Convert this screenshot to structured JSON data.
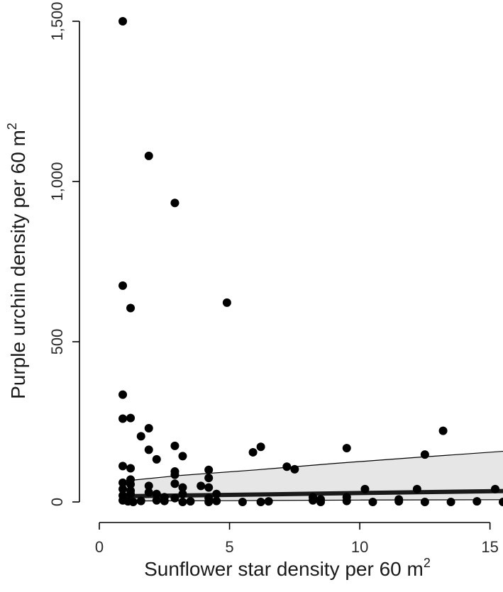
{
  "chart_data": {
    "type": "scatter",
    "title": "",
    "xlabel": "Sunflower star density per 60 m",
    "xlabel_sup": "2",
    "ylabel": "Purple urchin density per 60 m",
    "ylabel_sup": "2",
    "xlim": [
      0,
      15.5
    ],
    "ylim": [
      0,
      1500
    ],
    "x_ticks": [
      0,
      5,
      10,
      15
    ],
    "x_tick_labels": [
      "0",
      "5",
      "10",
      "15"
    ],
    "y_ticks": [
      0,
      500,
      1000,
      1500
    ],
    "y_tick_labels": [
      "0",
      "500",
      "1,000",
      "1,500"
    ],
    "grid": false,
    "legend": "none",
    "point_color": "#000000",
    "band_fill": "#e6e6e6",
    "points": [
      {
        "x": 0.9,
        "y": 1500
      },
      {
        "x": 1.9,
        "y": 1080
      },
      {
        "x": 2.9,
        "y": 933
      },
      {
        "x": 0.9,
        "y": 675
      },
      {
        "x": 1.2,
        "y": 605
      },
      {
        "x": 4.9,
        "y": 622
      },
      {
        "x": 0.9,
        "y": 335
      },
      {
        "x": 0.9,
        "y": 260
      },
      {
        "x": 1.2,
        "y": 262
      },
      {
        "x": 1.9,
        "y": 230
      },
      {
        "x": 1.6,
        "y": 205
      },
      {
        "x": 1.9,
        "y": 163
      },
      {
        "x": 2.9,
        "y": 175
      },
      {
        "x": 3.2,
        "y": 143
      },
      {
        "x": 2.2,
        "y": 133
      },
      {
        "x": 0.9,
        "y": 112
      },
      {
        "x": 1.2,
        "y": 105
      },
      {
        "x": 4.2,
        "y": 100
      },
      {
        "x": 2.9,
        "y": 95
      },
      {
        "x": 2.9,
        "y": 85
      },
      {
        "x": 0.9,
        "y": 60
      },
      {
        "x": 1.2,
        "y": 70
      },
      {
        "x": 1.2,
        "y": 55
      },
      {
        "x": 1.9,
        "y": 50
      },
      {
        "x": 2.9,
        "y": 57
      },
      {
        "x": 3.9,
        "y": 50
      },
      {
        "x": 4.2,
        "y": 45
      },
      {
        "x": 4.2,
        "y": 75
      },
      {
        "x": 3.2,
        "y": 45
      },
      {
        "x": 0.9,
        "y": 40
      },
      {
        "x": 1.2,
        "y": 35
      },
      {
        "x": 1.2,
        "y": 25
      },
      {
        "x": 1.9,
        "y": 30
      },
      {
        "x": 2.2,
        "y": 25
      },
      {
        "x": 2.5,
        "y": 15
      },
      {
        "x": 3.2,
        "y": 25
      },
      {
        "x": 4.5,
        "y": 25
      },
      {
        "x": 4.2,
        "y": 12
      },
      {
        "x": 0.9,
        "y": 20
      },
      {
        "x": 0.9,
        "y": 5
      },
      {
        "x": 1.1,
        "y": 2
      },
      {
        "x": 1.3,
        "y": 0
      },
      {
        "x": 1.6,
        "y": 3
      },
      {
        "x": 2.2,
        "y": 5
      },
      {
        "x": 2.5,
        "y": 3
      },
      {
        "x": 2.9,
        "y": 12
      },
      {
        "x": 3.2,
        "y": 0
      },
      {
        "x": 3.5,
        "y": 2
      },
      {
        "x": 4.2,
        "y": 0
      },
      {
        "x": 4.5,
        "y": 3
      },
      {
        "x": 5.5,
        "y": 0
      },
      {
        "x": 5.9,
        "y": 155
      },
      {
        "x": 6.2,
        "y": 172
      },
      {
        "x": 6.2,
        "y": 0
      },
      {
        "x": 6.5,
        "y": 2
      },
      {
        "x": 7.2,
        "y": 110
      },
      {
        "x": 7.5,
        "y": 102
      },
      {
        "x": 8.2,
        "y": 15
      },
      {
        "x": 8.2,
        "y": 5
      },
      {
        "x": 8.5,
        "y": 8
      },
      {
        "x": 8.5,
        "y": 0
      },
      {
        "x": 9.5,
        "y": 168
      },
      {
        "x": 9.5,
        "y": 15
      },
      {
        "x": 9.5,
        "y": 3
      },
      {
        "x": 10.2,
        "y": 40
      },
      {
        "x": 10.5,
        "y": 0
      },
      {
        "x": 11.5,
        "y": 8
      },
      {
        "x": 11.5,
        "y": 2
      },
      {
        "x": 12.2,
        "y": 40
      },
      {
        "x": 12.5,
        "y": 148
      },
      {
        "x": 12.5,
        "y": 0
      },
      {
        "x": 13.2,
        "y": 222
      },
      {
        "x": 13.5,
        "y": 0
      },
      {
        "x": 14.5,
        "y": 2
      },
      {
        "x": 15.2,
        "y": 40
      },
      {
        "x": 15.5,
        "y": 0
      }
    ],
    "fit_line": [
      {
        "x": 0.9,
        "y": 18
      },
      {
        "x": 5,
        "y": 22
      },
      {
        "x": 10,
        "y": 28
      },
      {
        "x": 15.5,
        "y": 34
      }
    ],
    "band_upper": [
      {
        "x": 0.9,
        "y": 65
      },
      {
        "x": 3,
        "y": 82
      },
      {
        "x": 6,
        "y": 100
      },
      {
        "x": 9,
        "y": 120
      },
      {
        "x": 12,
        "y": 138
      },
      {
        "x": 15.5,
        "y": 158
      }
    ],
    "band_lower": [
      {
        "x": 0.9,
        "y": 3
      },
      {
        "x": 5,
        "y": 4
      },
      {
        "x": 10,
        "y": 6
      },
      {
        "x": 15.5,
        "y": 7
      }
    ]
  }
}
